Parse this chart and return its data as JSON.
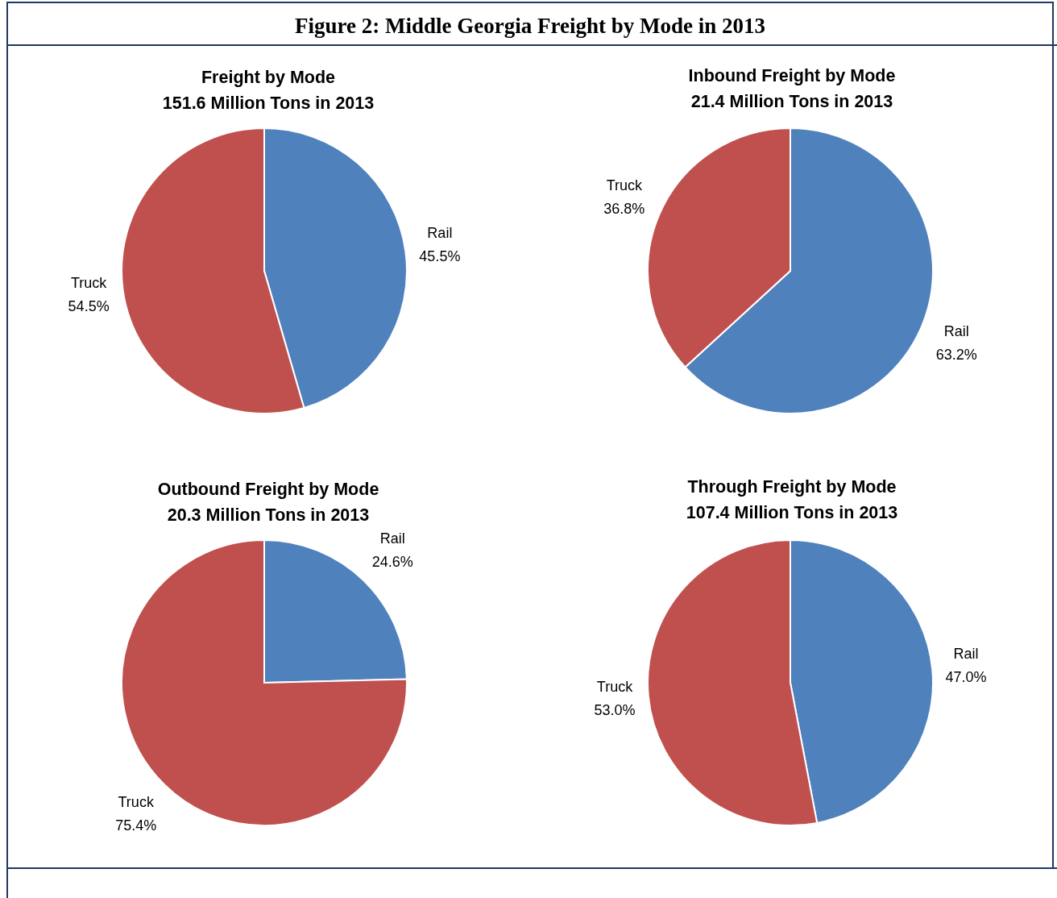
{
  "chart_data": [
    {
      "type": "pie",
      "title": "Freight by Mode",
      "subtitle": "151.6 Million Tons in 2013",
      "annotations": [
        "Figure 2: Middle Georgia Freight by Mode in 2013"
      ],
      "categories": [
        "Rail",
        "Truck"
      ],
      "values": [
        45.5,
        54.5
      ],
      "colors": [
        "#4f81bd",
        "#c0504d"
      ],
      "value_labels": [
        "45.5%",
        "54.5%"
      ]
    },
    {
      "type": "pie",
      "title": "Inbound Freight by Mode",
      "subtitle": "21.4 Million Tons in 2013",
      "categories": [
        "Rail",
        "Truck"
      ],
      "values": [
        63.2,
        36.8
      ],
      "colors": [
        "#4f81bd",
        "#c0504d"
      ],
      "value_labels": [
        "63.2%",
        "36.8%"
      ]
    },
    {
      "type": "pie",
      "title": "Outbound Freight by Mode",
      "subtitle": "20.3 Million Tons in 2013",
      "categories": [
        "Rail",
        "Truck"
      ],
      "values": [
        24.6,
        75.4
      ],
      "colors": [
        "#4f81bd",
        "#c0504d"
      ],
      "value_labels": [
        "24.6%",
        "75.4%"
      ]
    },
    {
      "type": "pie",
      "title": "Through Freight by Mode",
      "subtitle": "107.4 Million Tons in 2013",
      "categories": [
        "Rail",
        "Truck"
      ],
      "values": [
        47.0,
        53.0
      ],
      "colors": [
        "#4f81bd",
        "#c0504d"
      ],
      "value_labels": [
        "47.0%",
        "53.0%"
      ]
    }
  ]
}
